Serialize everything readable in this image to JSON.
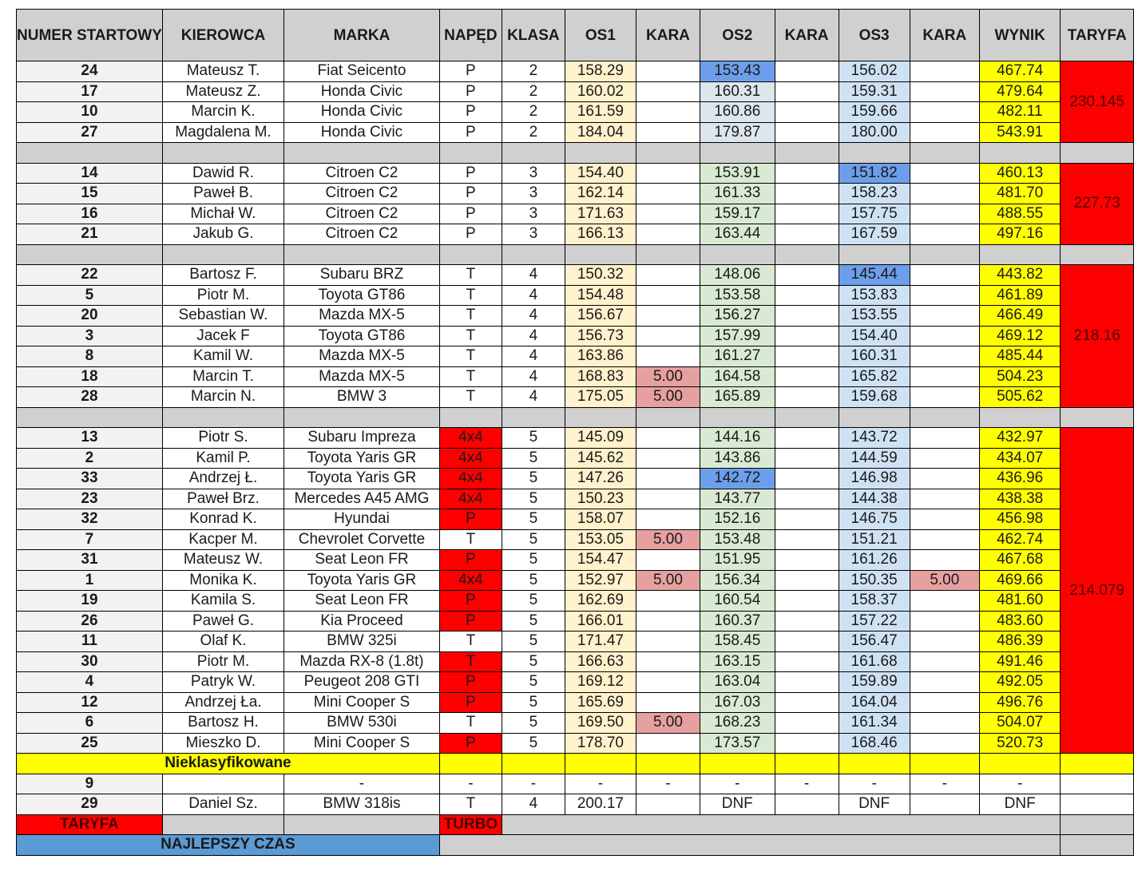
{
  "headers": [
    "NUMER STARTOWY",
    "KIEROWCA",
    "MARKA",
    "NAPĘD",
    "KLASA",
    "OS1",
    "KARA",
    "OS2",
    "KARA",
    "OS3",
    "KARA",
    "WYNIK",
    "TARYFA"
  ],
  "groups": [
    {
      "taryfa": "230.145",
      "rows": [
        {
          "num": "24",
          "driver": "Mateusz T.",
          "car": "Fiat Seicento",
          "drive": "P",
          "turbo": false,
          "cls": "2",
          "os1": "158.29",
          "kara1": "",
          "os2": "153.43",
          "kara2": "",
          "os3": "156.02",
          "kara3": "",
          "wynik": "467.74",
          "best": "os2"
        },
        {
          "num": "17",
          "driver": "Mateusz Z.",
          "car": "Honda Civic",
          "drive": "P",
          "turbo": false,
          "cls": "2",
          "os1": "160.02",
          "kara1": "",
          "os2": "160.31",
          "kara2": "",
          "os3": "159.31",
          "kara3": "",
          "wynik": "479.64",
          "best": ""
        },
        {
          "num": "10",
          "driver": "Marcin K.",
          "car": "Honda Civic",
          "drive": "P",
          "turbo": false,
          "cls": "2",
          "os1": "161.59",
          "kara1": "",
          "os2": "160.86",
          "kara2": "",
          "os3": "159.66",
          "kara3": "",
          "wynik": "482.11",
          "best": ""
        },
        {
          "num": "27",
          "driver": "Magdalena M.",
          "car": "Honda Civic",
          "drive": "P",
          "turbo": false,
          "cls": "2",
          "os1": "184.04",
          "kara1": "",
          "os2": "179.87",
          "kara2": "",
          "os3": "180.00",
          "kara3": "",
          "wynik": "543.91",
          "best": ""
        }
      ]
    },
    {
      "taryfa": "227.73",
      "rows": [
        {
          "num": "14",
          "driver": "Dawid R.",
          "car": "Citroen C2",
          "drive": "P",
          "turbo": false,
          "cls": "3",
          "os1": "154.40",
          "kara1": "",
          "os2": "153.91",
          "kara2": "",
          "os3": "151.82",
          "kara3": "",
          "wynik": "460.13",
          "best": "os3"
        },
        {
          "num": "15",
          "driver": "Paweł B.",
          "car": "Citroen C2",
          "drive": "P",
          "turbo": false,
          "cls": "3",
          "os1": "162.14",
          "kara1": "",
          "os2": "161.33",
          "kara2": "",
          "os3": "158.23",
          "kara3": "",
          "wynik": "481.70",
          "best": ""
        },
        {
          "num": "16",
          "driver": "Michał W.",
          "car": "Citroen C2",
          "drive": "P",
          "turbo": false,
          "cls": "3",
          "os1": "171.63",
          "kara1": "",
          "os2": "159.17",
          "kara2": "",
          "os3": "157.75",
          "kara3": "",
          "wynik": "488.55",
          "best": ""
        },
        {
          "num": "21",
          "driver": "Jakub G.",
          "car": "Citroen C2",
          "drive": "P",
          "turbo": false,
          "cls": "3",
          "os1": "166.13",
          "kara1": "",
          "os2": "163.44",
          "kara2": "",
          "os3": "167.59",
          "kara3": "",
          "wynik": "497.16",
          "best": ""
        }
      ]
    },
    {
      "taryfa": "218.16",
      "rows": [
        {
          "num": "22",
          "driver": "Bartosz F.",
          "car": "Subaru BRZ",
          "drive": "T",
          "turbo": false,
          "cls": "4",
          "os1": "150.32",
          "kara1": "",
          "os2": "148.06",
          "kara2": "",
          "os3": "145.44",
          "kara3": "",
          "wynik": "443.82",
          "best": "os3"
        },
        {
          "num": "5",
          "driver": "Piotr M.",
          "car": "Toyota GT86",
          "drive": "T",
          "turbo": false,
          "cls": "4",
          "os1": "154.48",
          "kara1": "",
          "os2": "153.58",
          "kara2": "",
          "os3": "153.83",
          "kara3": "",
          "wynik": "461.89",
          "best": ""
        },
        {
          "num": "20",
          "driver": "Sebastian W.",
          "car": "Mazda MX-5",
          "drive": "T",
          "turbo": false,
          "cls": "4",
          "os1": "156.67",
          "kara1": "",
          "os2": "156.27",
          "kara2": "",
          "os3": "153.55",
          "kara3": "",
          "wynik": "466.49",
          "best": ""
        },
        {
          "num": "3",
          "driver": "Jacek F",
          "car": "Toyota GT86",
          "drive": "T",
          "turbo": false,
          "cls": "4",
          "os1": "156.73",
          "kara1": "",
          "os2": "157.99",
          "kara2": "",
          "os3": "154.40",
          "kara3": "",
          "wynik": "469.12",
          "best": ""
        },
        {
          "num": "8",
          "driver": "Kamil W.",
          "car": "Mazda MX-5",
          "drive": "T",
          "turbo": false,
          "cls": "4",
          "os1": "163.86",
          "kara1": "",
          "os2": "161.27",
          "kara2": "",
          "os3": "160.31",
          "kara3": "",
          "wynik": "485.44",
          "best": ""
        },
        {
          "num": "18",
          "driver": "Marcin T.",
          "car": "Mazda MX-5",
          "drive": "T",
          "turbo": false,
          "cls": "4",
          "os1": "168.83",
          "kara1": "5.00",
          "os2": "164.58",
          "kara2": "",
          "os3": "165.82",
          "kara3": "",
          "wynik": "504.23",
          "best": ""
        },
        {
          "num": "28",
          "driver": "Marcin N.",
          "car": "BMW 3",
          "drive": "T",
          "turbo": false,
          "cls": "4",
          "os1": "175.05",
          "kara1": "5.00",
          "os2": "165.89",
          "kara2": "",
          "os3": "159.68",
          "kara3": "",
          "wynik": "505.62",
          "best": ""
        }
      ]
    },
    {
      "taryfa": "214.079",
      "rows": [
        {
          "num": "13",
          "driver": "Piotr S.",
          "car": "Subaru Impreza",
          "drive": "4x4",
          "turbo": true,
          "cls": "5",
          "os1": "145.09",
          "kara1": "",
          "os2": "144.16",
          "kara2": "",
          "os3": "143.72",
          "kara3": "",
          "wynik": "432.97",
          "best": ""
        },
        {
          "num": "2",
          "driver": "Kamil P.",
          "car": "Toyota Yaris GR",
          "drive": "4x4",
          "turbo": true,
          "cls": "5",
          "os1": "145.62",
          "kara1": "",
          "os2": "143.86",
          "kara2": "",
          "os3": "144.59",
          "kara3": "",
          "wynik": "434.07",
          "best": ""
        },
        {
          "num": "33",
          "driver": "Andrzej Ł.",
          "car": "Toyota Yaris GR",
          "drive": "4x4",
          "turbo": true,
          "cls": "5",
          "os1": "147.26",
          "kara1": "",
          "os2": "142.72",
          "kara2": "",
          "os3": "146.98",
          "kara3": "",
          "wynik": "436.96",
          "best": "os2"
        },
        {
          "num": "23",
          "driver": "Paweł Brz.",
          "car": "Mercedes A45 AMG",
          "drive": "4x4",
          "turbo": true,
          "cls": "5",
          "os1": "150.23",
          "kara1": "",
          "os2": "143.77",
          "kara2": "",
          "os3": "144.38",
          "kara3": "",
          "wynik": "438.38",
          "best": ""
        },
        {
          "num": "32",
          "driver": "Konrad K.",
          "car": "Hyundai",
          "drive": "P",
          "turbo": true,
          "cls": "5",
          "os1": "158.07",
          "kara1": "",
          "os2": "152.16",
          "kara2": "",
          "os3": "146.75",
          "kara3": "",
          "wynik": "456.98",
          "best": ""
        },
        {
          "num": "7",
          "driver": "Kacper M.",
          "car": "Chevrolet Corvette",
          "drive": "T",
          "turbo": false,
          "cls": "5",
          "os1": "153.05",
          "kara1": "5.00",
          "os2": "153.48",
          "kara2": "",
          "os3": "151.21",
          "kara3": "",
          "wynik": "462.74",
          "best": ""
        },
        {
          "num": "31",
          "driver": "Mateusz W.",
          "car": "Seat Leon FR",
          "drive": "P",
          "turbo": true,
          "cls": "5",
          "os1": "154.47",
          "kara1": "",
          "os2": "151.95",
          "kara2": "",
          "os3": "161.26",
          "kara3": "",
          "wynik": "467.68",
          "best": ""
        },
        {
          "num": "1",
          "driver": "Monika K.",
          "car": "Toyota Yaris GR",
          "drive": "4x4",
          "turbo": true,
          "cls": "5",
          "os1": "152.97",
          "kara1": "5.00",
          "os2": "156.34",
          "kara2": "",
          "os3": "150.35",
          "kara3": "5.00",
          "wynik": "469.66",
          "best": ""
        },
        {
          "num": "19",
          "driver": "Kamila S.",
          "car": "Seat Leon FR",
          "drive": "P",
          "turbo": true,
          "cls": "5",
          "os1": "162.69",
          "kara1": "",
          "os2": "160.54",
          "kara2": "",
          "os3": "158.37",
          "kara3": "",
          "wynik": "481.60",
          "best": ""
        },
        {
          "num": "26",
          "driver": "Paweł G.",
          "car": "Kia Proceed",
          "drive": "P",
          "turbo": true,
          "cls": "5",
          "os1": "166.01",
          "kara1": "",
          "os2": "160.37",
          "kara2": "",
          "os3": "157.22",
          "kara3": "",
          "wynik": "483.60",
          "best": ""
        },
        {
          "num": "11",
          "driver": "Olaf K.",
          "car": "BMW 325i",
          "drive": "T",
          "turbo": false,
          "cls": "5",
          "os1": "171.47",
          "kara1": "",
          "os2": "158.45",
          "kara2": "",
          "os3": "156.47",
          "kara3": "",
          "wynik": "486.39",
          "best": ""
        },
        {
          "num": "30",
          "driver": "Piotr M.",
          "car": "Mazda RX-8 (1.8t)",
          "drive": "T",
          "turbo": true,
          "cls": "5",
          "os1": "166.63",
          "kara1": "",
          "os2": "163.15",
          "kara2": "",
          "os3": "161.68",
          "kara3": "",
          "wynik": "491.46",
          "best": ""
        },
        {
          "num": "4",
          "driver": "Patryk W.",
          "car": "Peugeot 208 GTI",
          "drive": "P",
          "turbo": true,
          "cls": "5",
          "os1": "169.12",
          "kara1": "",
          "os2": "163.04",
          "kara2": "",
          "os3": "159.89",
          "kara3": "",
          "wynik": "492.05",
          "best": ""
        },
        {
          "num": "12",
          "driver": "Andrzej Ła.",
          "car": "Mini Cooper S",
          "drive": "P",
          "turbo": true,
          "cls": "5",
          "os1": "165.69",
          "kara1": "",
          "os2": "167.03",
          "kara2": "",
          "os3": "164.04",
          "kara3": "",
          "wynik": "496.76",
          "best": ""
        },
        {
          "num": "6",
          "driver": "Bartosz H.",
          "car": "BMW 530i",
          "drive": "T",
          "turbo": false,
          "cls": "5",
          "os1": "169.50",
          "kara1": "5.00",
          "os2": "168.23",
          "kara2": "",
          "os3": "161.34",
          "kara3": "",
          "wynik": "504.07",
          "best": ""
        },
        {
          "num": "25",
          "driver": "Mieszko D.",
          "car": "Mini Cooper S",
          "drive": "P",
          "turbo": true,
          "cls": "5",
          "os1": "178.70",
          "kara1": "",
          "os2": "173.57",
          "kara2": "",
          "os3": "168.46",
          "kara3": "",
          "wynik": "520.73",
          "best": ""
        }
      ]
    }
  ],
  "unclassified_label": "Nieklasyfikowane",
  "unclassified": [
    {
      "num": "9",
      "driver": "",
      "car": "-",
      "drive": "-",
      "cls": "-",
      "os1": "-",
      "kara1": "-",
      "os2": "-",
      "kara2": "-",
      "os3": "-",
      "kara3": "-",
      "wynik": "-"
    },
    {
      "num": "29",
      "driver": "Daniel Sz.",
      "car": "BMW 318is",
      "drive": "T",
      "cls": "4",
      "os1": "200.17",
      "kara1": "",
      "os2": "DNF",
      "kara2": "",
      "os3": "DNF",
      "kara3": "",
      "wynik": "DNF"
    }
  ],
  "legend": {
    "taryfa": "TARYFA",
    "turbo": "TURBO",
    "best": "NAJLEPSZY CZAS"
  },
  "colors": {
    "best": "#6d9eeb",
    "turbo": "#ff0000",
    "taryfa": "#ff0000",
    "wynik": "#ffff00",
    "kara": "#e6a0a0"
  }
}
